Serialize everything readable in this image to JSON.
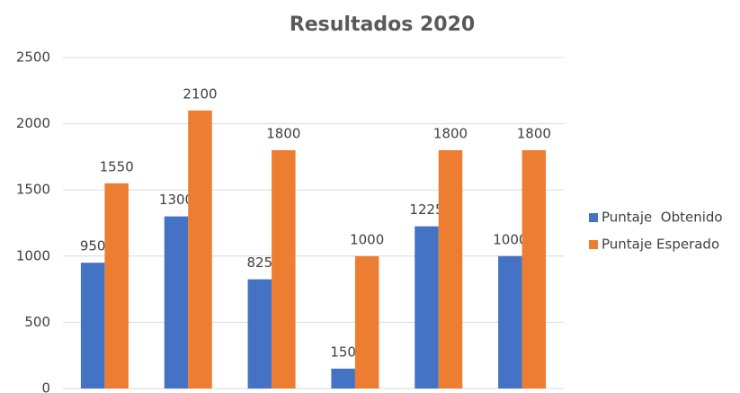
{
  "chart_data": {
    "type": "bar",
    "title": "Resultados 2020",
    "categories": [
      null,
      null,
      null,
      null,
      null,
      null
    ],
    "series": [
      {
        "name": "Puntaje  Obtenido",
        "color": "#4472c4",
        "values": [
          950,
          1300,
          825,
          150,
          1225,
          1000
        ]
      },
      {
        "name": "Puntaje Esperado",
        "color": "#ed7d31",
        "values": [
          1550,
          2100,
          1800,
          1000,
          1800,
          1800
        ]
      }
    ],
    "ylim": [
      0,
      2500
    ],
    "yticks": [
      0,
      500,
      1000,
      1500,
      2000,
      2500
    ],
    "grid": true,
    "legend": "right"
  }
}
